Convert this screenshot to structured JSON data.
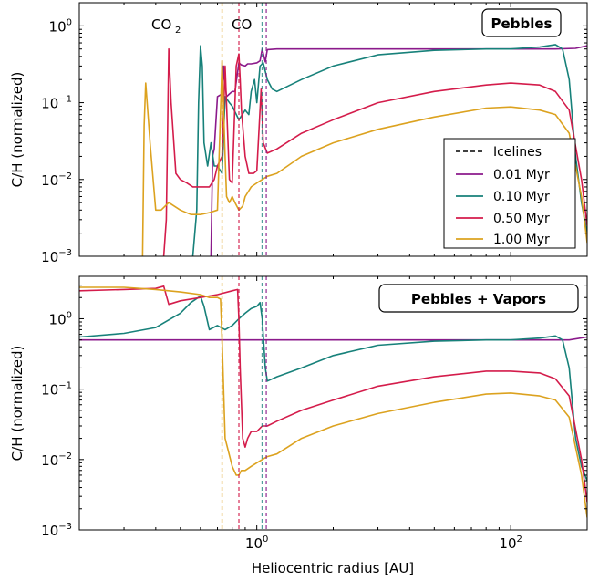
{
  "figure": {
    "xlabel": "Heliocentric radius [AU]",
    "legend_title": "Icelines",
    "x_ticks": [
      {
        "base": "10",
        "exp": "0",
        "value": 10
      },
      {
        "base": "10",
        "exp": "2",
        "value": 100
      }
    ],
    "y_ticks": [
      {
        "base": "10",
        "exp": "0",
        "value": 1
      },
      {
        "base": "10",
        "exp": "−1",
        "value": 0.1
      },
      {
        "base": "10",
        "exp": "−2",
        "value": 0.01
      },
      {
        "base": "10",
        "exp": "−3",
        "value": 0.001
      }
    ],
    "colors": {
      "0.01 Myr": "#8b1a8b",
      "0.10 Myr": "#17817a",
      "0.50 Myr": "#d41c4b",
      "1.00 Myr": "#dca21f"
    }
  },
  "chart_data": [
    {
      "type": "line",
      "panel_label": "Pebbles",
      "ylabel": "C/H (normalized)",
      "xscale": "log",
      "yscale": "log",
      "xlim": [
        2,
        200
      ],
      "ylim": [
        0.001,
        2
      ],
      "annotations": [
        {
          "text": "CO",
          "sub": "2",
          "x": 4.3,
          "y": 1.0
        },
        {
          "text": "CO",
          "sub": "",
          "x": 8.4,
          "y": 1.0
        }
      ],
      "icelines": [
        {
          "series": "1.00 Myr",
          "x": 7.3
        },
        {
          "series": "0.50 Myr",
          "x": 8.5
        },
        {
          "series": "0.10 Myr",
          "x": 10.5
        },
        {
          "series": "0.01 Myr",
          "x": 10.9
        }
      ],
      "legend": {
        "placement": "lower-right",
        "entries": [
          "Icelines",
          "0.01 Myr",
          "0.10 Myr",
          "0.50 Myr",
          "1.00 Myr"
        ]
      },
      "series": [
        {
          "name": "0.01 Myr",
          "x": [
            6.6,
            6.7,
            6.8,
            7.0,
            7.3,
            7.4,
            7.45,
            7.6,
            7.8,
            8.0,
            8.2,
            8.5,
            8.7,
            9.0,
            9.2,
            9.5,
            10.0,
            10.3,
            10.5,
            10.8,
            11.0,
            12,
            20,
            50,
            100,
            150,
            180,
            200
          ],
          "y": [
            0.001,
            0.02,
            0.025,
            0.12,
            0.13,
            0.3,
            0.2,
            0.12,
            0.13,
            0.14,
            0.14,
            0.33,
            0.31,
            0.3,
            0.32,
            0.32,
            0.33,
            0.35,
            0.5,
            0.34,
            0.49,
            0.5,
            0.5,
            0.5,
            0.5,
            0.5,
            0.51,
            0.55
          ]
        },
        {
          "name": "0.10 Myr",
          "x": [
            5.6,
            5.8,
            5.9,
            6.0,
            6.1,
            6.2,
            6.4,
            6.6,
            6.8,
            7.0,
            7.3,
            7.5,
            7.8,
            8.0,
            8.5,
            9.0,
            9.3,
            9.5,
            9.8,
            10.0,
            10.3,
            10.6,
            11.0,
            11.5,
            12,
            15,
            20,
            30,
            50,
            80,
            100,
            130,
            150,
            160,
            170,
            180,
            190,
            200
          ],
          "y": [
            0.001,
            0.004,
            0.1,
            0.55,
            0.3,
            0.03,
            0.015,
            0.03,
            0.015,
            0.015,
            0.012,
            0.12,
            0.1,
            0.09,
            0.06,
            0.08,
            0.07,
            0.14,
            0.2,
            0.1,
            0.3,
            0.33,
            0.2,
            0.15,
            0.14,
            0.2,
            0.3,
            0.42,
            0.48,
            0.5,
            0.5,
            0.53,
            0.57,
            0.5,
            0.2,
            0.02,
            0.005,
            0.002
          ]
        },
        {
          "name": "0.50 Myr",
          "x": [
            4.3,
            4.4,
            4.5,
            4.6,
            4.8,
            5.0,
            5.3,
            5.6,
            6.0,
            6.5,
            6.8,
            7.0,
            7.3,
            7.5,
            7.8,
            8.0,
            8.3,
            8.5,
            8.6,
            8.7,
            9.0,
            9.3,
            9.7,
            10.0,
            10.4,
            10.6,
            11.0,
            12,
            15,
            20,
            30,
            50,
            80,
            100,
            130,
            150,
            170,
            190,
            200
          ],
          "y": [
            0.001,
            0.003,
            0.5,
            0.1,
            0.012,
            0.01,
            0.009,
            0.008,
            0.008,
            0.008,
            0.01,
            0.015,
            0.02,
            0.3,
            0.01,
            0.009,
            0.3,
            0.43,
            0.2,
            0.08,
            0.02,
            0.012,
            0.012,
            0.013,
            0.15,
            0.03,
            0.022,
            0.025,
            0.04,
            0.06,
            0.1,
            0.14,
            0.17,
            0.18,
            0.17,
            0.14,
            0.08,
            0.01,
            0.0025
          ]
        },
        {
          "name": "1.00 Myr",
          "x": [
            3.55,
            3.6,
            3.65,
            3.7,
            3.8,
            4.0,
            4.2,
            4.5,
            5.0,
            5.5,
            6.0,
            6.5,
            7.0,
            7.3,
            7.5,
            7.6,
            7.8,
            8.0,
            8.2,
            8.5,
            8.8,
            9.0,
            9.5,
            10.0,
            10.5,
            11.0,
            12,
            15,
            20,
            30,
            50,
            80,
            100,
            130,
            150,
            170,
            190,
            200
          ],
          "y": [
            0.001,
            0.05,
            0.18,
            0.1,
            0.03,
            0.004,
            0.004,
            0.005,
            0.004,
            0.0035,
            0.0035,
            0.0037,
            0.004,
            0.35,
            0.02,
            0.006,
            0.005,
            0.006,
            0.005,
            0.004,
            0.0045,
            0.006,
            0.008,
            0.009,
            0.01,
            0.011,
            0.012,
            0.02,
            0.03,
            0.045,
            0.065,
            0.085,
            0.088,
            0.08,
            0.07,
            0.04,
            0.006,
            0.0015
          ]
        }
      ]
    },
    {
      "type": "line",
      "panel_label": "Pebbles + Vapors",
      "ylabel": "C/H (normalized)",
      "xscale": "log",
      "yscale": "log",
      "xlim": [
        2,
        200
      ],
      "ylim": [
        0.001,
        4
      ],
      "icelines": [
        {
          "series": "1.00 Myr",
          "x": 7.3
        },
        {
          "series": "0.50 Myr",
          "x": 8.5
        },
        {
          "series": "0.10 Myr",
          "x": 10.5
        },
        {
          "series": "0.01 Myr",
          "x": 10.9
        }
      ],
      "series": [
        {
          "name": "0.01 Myr",
          "x": [
            2,
            5,
            10,
            20,
            50,
            100,
            150,
            170,
            200
          ],
          "y": [
            0.5,
            0.5,
            0.5,
            0.5,
            0.5,
            0.5,
            0.5,
            0.5,
            0.55
          ]
        },
        {
          "name": "0.10 Myr",
          "x": [
            2,
            3,
            4,
            5,
            5.5,
            6.0,
            6.2,
            6.5,
            7.0,
            7.5,
            8.0,
            8.5,
            9.0,
            9.5,
            10.0,
            10.3,
            10.5,
            10.8,
            11.0,
            12,
            15,
            20,
            30,
            50,
            80,
            100,
            130,
            150,
            160,
            170,
            180,
            190,
            200
          ],
          "y": [
            0.55,
            0.62,
            0.75,
            1.2,
            1.7,
            2.1,
            1.5,
            0.7,
            0.8,
            0.7,
            0.8,
            1.0,
            1.2,
            1.4,
            1.5,
            1.7,
            1.0,
            0.2,
            0.13,
            0.15,
            0.2,
            0.3,
            0.42,
            0.48,
            0.5,
            0.5,
            0.53,
            0.57,
            0.5,
            0.2,
            0.02,
            0.008,
            0.005
          ]
        },
        {
          "name": "0.50 Myr",
          "x": [
            2,
            3,
            4,
            4.3,
            4.5,
            5,
            6,
            7,
            8,
            8.4,
            8.5,
            8.6,
            8.8,
            9.0,
            9.2,
            9.5,
            10.0,
            10.5,
            11.0,
            12,
            15,
            20,
            30,
            50,
            80,
            100,
            130,
            150,
            170,
            190,
            200
          ],
          "y": [
            2.5,
            2.6,
            2.7,
            2.9,
            1.6,
            1.8,
            2.0,
            2.2,
            2.5,
            2.6,
            1.0,
            0.2,
            0.02,
            0.015,
            0.02,
            0.025,
            0.025,
            0.03,
            0.03,
            0.035,
            0.05,
            0.07,
            0.11,
            0.15,
            0.18,
            0.18,
            0.17,
            0.14,
            0.08,
            0.01,
            0.0025
          ]
        },
        {
          "name": "1.00 Myr",
          "x": [
            2,
            3,
            4,
            5,
            6,
            6.5,
            7.0,
            7.2,
            7.3,
            7.5,
            8.0,
            8.3,
            8.5,
            8.7,
            9.0,
            9.5,
            10.0,
            10.5,
            11.0,
            12,
            15,
            20,
            30,
            50,
            80,
            100,
            130,
            150,
            170,
            190,
            200
          ],
          "y": [
            2.8,
            2.8,
            2.6,
            2.4,
            2.2,
            2.0,
            2.0,
            1.9,
            0.5,
            0.02,
            0.008,
            0.006,
            0.006,
            0.007,
            0.007,
            0.008,
            0.009,
            0.01,
            0.011,
            0.012,
            0.02,
            0.03,
            0.045,
            0.065,
            0.085,
            0.088,
            0.08,
            0.07,
            0.04,
            0.006,
            0.0015
          ]
        }
      ]
    }
  ]
}
